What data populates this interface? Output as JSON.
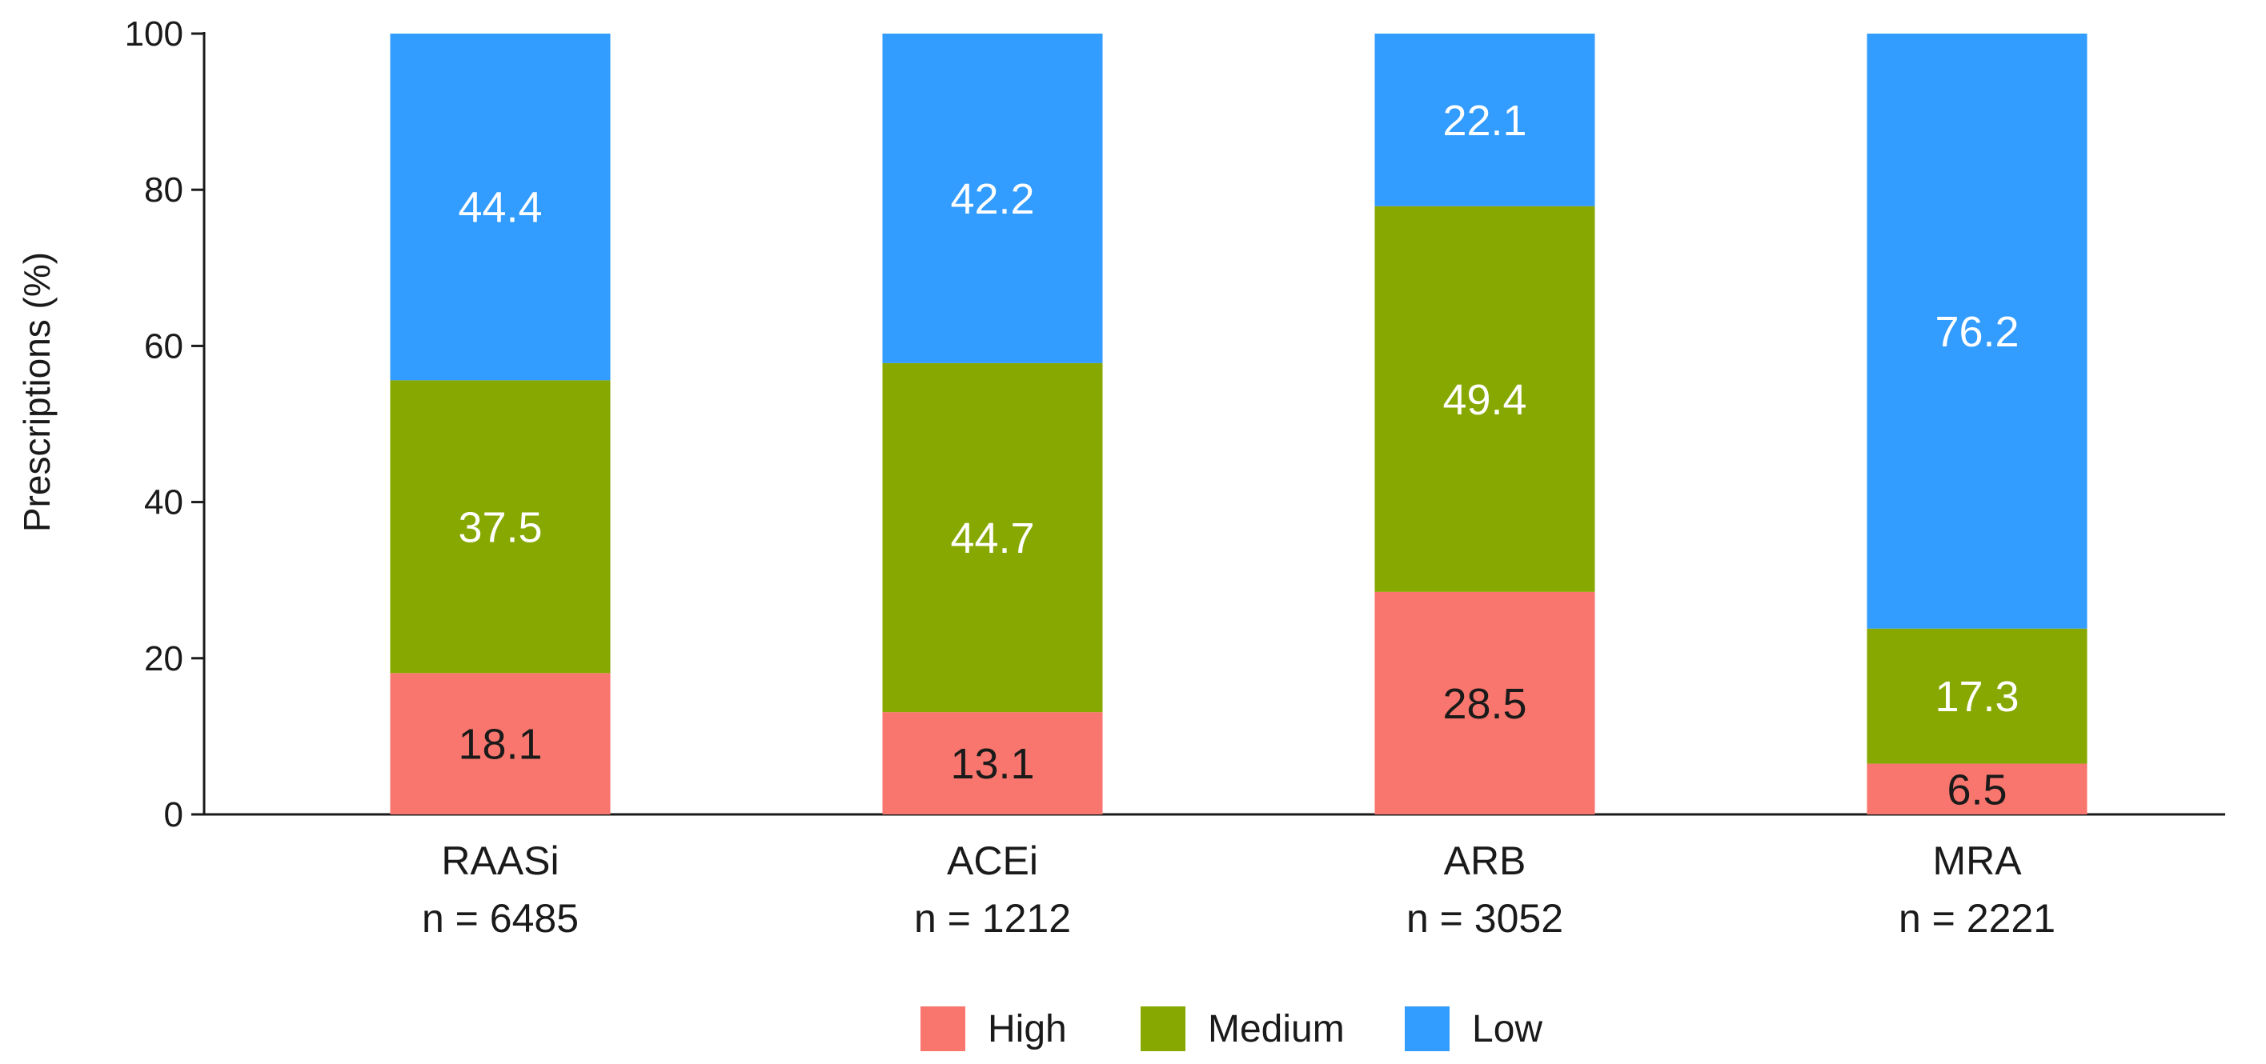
{
  "chart_data": {
    "type": "bar",
    "stacked": true,
    "title": "",
    "xlabel": "",
    "ylabel": "Prescriptions (%)",
    "ylim": [
      0,
      100
    ],
    "yticks": [
      0,
      20,
      40,
      60,
      80,
      100
    ],
    "grid": false,
    "legend_position": "bottom-center",
    "categories": [
      "RAASi",
      "ACEi",
      "ARB",
      "MRA"
    ],
    "category_sublabels": [
      "n = 6485",
      "n = 1212",
      "n = 3052",
      "n = 2221"
    ],
    "series": [
      {
        "name": "High",
        "color": "#f8766d",
        "label_color": "#1a1a1a",
        "values": [
          18.1,
          13.1,
          28.5,
          6.5
        ]
      },
      {
        "name": "Medium",
        "color": "#87a800",
        "label_color": "#ffffff",
        "values": [
          37.5,
          44.7,
          49.4,
          17.3
        ]
      },
      {
        "name": "Low",
        "color": "#339cff",
        "label_color": "#ffffff",
        "values": [
          44.4,
          42.2,
          22.1,
          76.2
        ]
      }
    ]
  }
}
